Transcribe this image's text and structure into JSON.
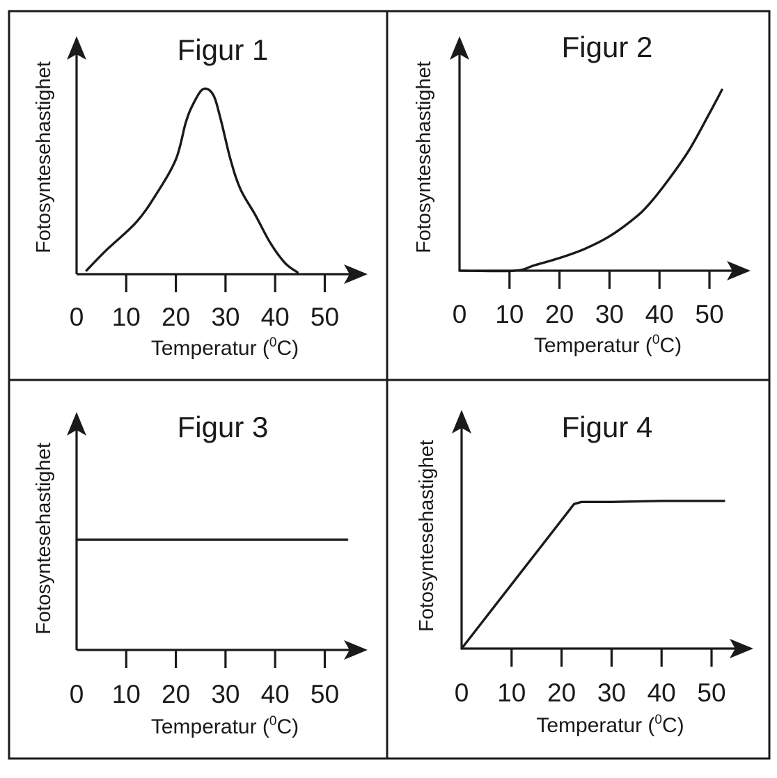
{
  "chart_data": [
    {
      "type": "line",
      "title": "Figur 1",
      "xlabel": "Temperatur",
      "xlabel_unit_sup": "0",
      "xlabel_unit": "C",
      "ylabel": "Fotosyntesehastighet",
      "xticks": [
        "0",
        "10",
        "20",
        "30",
        "40",
        "50"
      ],
      "xlim": [
        0,
        55
      ],
      "ylim": [
        0,
        1
      ],
      "y_tick_labels": false,
      "series": [
        {
          "x": [
            2,
            6,
            12,
            16,
            20,
            22,
            23.5,
            25.5,
            27.5,
            29,
            31,
            33,
            36,
            39,
            42,
            44.5
          ],
          "y": [
            0.02,
            0.13,
            0.28,
            0.43,
            0.62,
            0.82,
            0.92,
            1.0,
            0.97,
            0.84,
            0.62,
            0.46,
            0.32,
            0.17,
            0.06,
            0.01
          ]
        }
      ]
    },
    {
      "type": "line",
      "title": "Figur 2",
      "xlabel": "Temperatur",
      "xlabel_unit_sup": "0",
      "xlabel_unit": "C",
      "ylabel": "Fotosyntesehastighet",
      "xticks": [
        "0",
        "10",
        "20",
        "30",
        "40",
        "50"
      ],
      "xlim": [
        0,
        55
      ],
      "ylim": [
        0,
        1
      ],
      "y_tick_labels": false,
      "series": [
        {
          "x": [
            0,
            11,
            15,
            20,
            25,
            30,
            35,
            38,
            42,
            46,
            50,
            52.5
          ],
          "y": [
            0,
            0,
            0.03,
            0.07,
            0.12,
            0.19,
            0.29,
            0.37,
            0.51,
            0.67,
            0.87,
            1.0
          ]
        }
      ]
    },
    {
      "type": "line",
      "title": "Figur 3",
      "xlabel": "Temperatur",
      "xlabel_unit_sup": "0",
      "xlabel_unit": "C",
      "ylabel": "Fotosyntesehastighet",
      "xticks": [
        "0",
        "10",
        "20",
        "30",
        "40",
        "50"
      ],
      "xlim": [
        0,
        55
      ],
      "ylim": [
        0,
        1
      ],
      "y_tick_labels": false,
      "series": [
        {
          "x": [
            0,
            54.5
          ],
          "y": [
            0.51,
            0.51
          ]
        }
      ]
    },
    {
      "type": "line",
      "title": "Figur 4",
      "xlabel": "Temperatur",
      "xlabel_unit_sup": "0",
      "xlabel_unit": "C",
      "ylabel": "Fotosyntesehastighet",
      "xticks": [
        "0",
        "10",
        "20",
        "30",
        "40",
        "50"
      ],
      "xlim": [
        0,
        55
      ],
      "ylim": [
        0,
        1
      ],
      "y_tick_labels": false,
      "series": [
        {
          "x": [
            0,
            22.5,
            24,
            30,
            40,
            52.5
          ],
          "y": [
            0,
            0.69,
            0.7,
            0.7,
            0.705,
            0.705
          ]
        }
      ]
    }
  ]
}
